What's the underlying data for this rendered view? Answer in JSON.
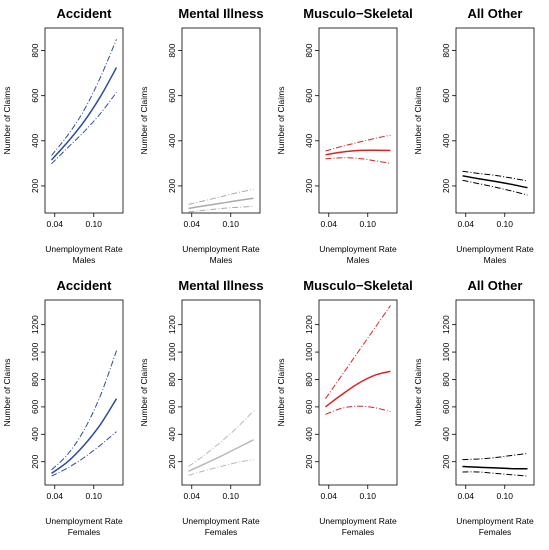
{
  "chart_data": [
    {
      "type": "line",
      "title": "Accident",
      "xlabel": "Unemployment Rate",
      "xlabel2": "Males",
      "ylabel": "Number of Claims",
      "xlim": [
        0.025,
        0.145
      ],
      "ylim": [
        80,
        900
      ],
      "xticks": [
        "0.04",
        "0.10"
      ],
      "yticks": [
        "200",
        "400",
        "600",
        "800"
      ],
      "color": "#2a4d9b",
      "x": [
        0.035,
        0.06,
        0.085,
        0.11,
        0.135
      ],
      "fit": [
        315,
        395,
        485,
        595,
        725
      ],
      "upper": [
        335,
        425,
        535,
        680,
        850
      ],
      "lower": [
        298,
        370,
        440,
        520,
        615
      ]
    },
    {
      "type": "line",
      "title": "Mental Illness",
      "xlabel": "Unemployment Rate",
      "xlabel2": "Males",
      "ylabel": "Number of Claims",
      "xlim": [
        0.025,
        0.145
      ],
      "ylim": [
        80,
        900
      ],
      "xticks": [
        "0.04",
        "0.10"
      ],
      "yticks": [
        "200",
        "400",
        "600",
        "800"
      ],
      "color": "#aaaaaa",
      "x": [
        0.035,
        0.06,
        0.085,
        0.11,
        0.135
      ],
      "fit": [
        100,
        112,
        123,
        135,
        145
      ],
      "upper": [
        118,
        135,
        152,
        170,
        185
      ],
      "lower": [
        85,
        92,
        100,
        105,
        110
      ]
    },
    {
      "type": "line",
      "title": "Musculo−Skeletal",
      "xlabel": "Unemployment Rate",
      "xlabel2": "Males",
      "ylabel": "Number of Claims",
      "xlim": [
        0.025,
        0.145
      ],
      "ylim": [
        80,
        900
      ],
      "xticks": [
        "0.04",
        "0.10"
      ],
      "yticks": [
        "200",
        "400",
        "600",
        "800"
      ],
      "color": "#dd2222",
      "x": [
        0.035,
        0.06,
        0.085,
        0.11,
        0.135
      ],
      "fit": [
        338,
        350,
        357,
        358,
        357
      ],
      "upper": [
        355,
        375,
        393,
        410,
        425
      ],
      "lower": [
        320,
        325,
        322,
        312,
        300
      ]
    },
    {
      "type": "line",
      "title": "All Other",
      "xlabel": "Unemployment Rate",
      "xlabel2": "Males",
      "ylabel": "Number of Claims",
      "xlim": [
        0.025,
        0.145
      ],
      "ylim": [
        80,
        900
      ],
      "xticks": [
        "0.04",
        "0.10"
      ],
      "yticks": [
        "200",
        "400",
        "600",
        "800"
      ],
      "color": "#000000",
      "x": [
        0.035,
        0.06,
        0.085,
        0.11,
        0.135
      ],
      "fit": [
        245,
        232,
        220,
        207,
        192
      ],
      "upper": [
        265,
        255,
        247,
        235,
        222
      ],
      "lower": [
        225,
        210,
        195,
        178,
        160
      ]
    },
    {
      "type": "line",
      "title": "Accident",
      "xlabel": "Unemployment Rate",
      "xlabel2": "Females",
      "ylabel": "Number of Claims",
      "xlim": [
        0.025,
        0.145
      ],
      "ylim": [
        30,
        1380
      ],
      "xticks": [
        "0.04",
        "0.10"
      ],
      "yticks": [
        "200",
        "400",
        "600",
        "800",
        "1000",
        "1200"
      ],
      "color": "#2a4d9b",
      "x": [
        0.035,
        0.06,
        0.085,
        0.11,
        0.135
      ],
      "fit": [
        115,
        200,
        320,
        470,
        660
      ],
      "upper": [
        140,
        255,
        430,
        680,
        1010
      ],
      "lower": [
        95,
        155,
        230,
        320,
        420
      ]
    },
    {
      "type": "line",
      "title": "Mental Illness",
      "xlabel": "Unemployment Rate",
      "xlabel2": "Females",
      "ylabel": "Number of Claims",
      "xlim": [
        0.025,
        0.145
      ],
      "ylim": [
        30,
        1380
      ],
      "xticks": [
        "0.04",
        "0.10"
      ],
      "yticks": [
        "200",
        "400",
        "600",
        "800",
        "1000",
        "1200"
      ],
      "color": "#b8b8b8",
      "x": [
        0.035,
        0.06,
        0.085,
        0.11,
        0.135
      ],
      "fit": [
        130,
        185,
        240,
        300,
        360
      ],
      "upper": [
        165,
        250,
        345,
        450,
        570
      ],
      "lower": [
        100,
        135,
        165,
        195,
        215
      ]
    },
    {
      "type": "line",
      "title": "Musculo−Skeletal",
      "xlabel": "Unemployment Rate",
      "xlabel2": "Females",
      "ylabel": "Number of Claims",
      "xlim": [
        0.025,
        0.145
      ],
      "ylim": [
        30,
        1380
      ],
      "xticks": [
        "0.04",
        "0.10"
      ],
      "yticks": [
        "200",
        "400",
        "600",
        "800",
        "1000",
        "1200"
      ],
      "color": "#dd2222",
      "x": [
        0.035,
        0.06,
        0.085,
        0.11,
        0.135
      ],
      "fit": [
        600,
        690,
        770,
        830,
        860
      ],
      "upper": [
        660,
        830,
        1000,
        1170,
        1340
      ],
      "lower": [
        545,
        590,
        605,
        595,
        565
      ]
    },
    {
      "type": "line",
      "title": "All Other",
      "xlabel": "Unemployment Rate",
      "xlabel2": "Females",
      "ylabel": "Number of Claims",
      "xlim": [
        0.025,
        0.145
      ],
      "ylim": [
        30,
        1380
      ],
      "xticks": [
        "0.04",
        "0.10"
      ],
      "yticks": [
        "200",
        "400",
        "600",
        "800",
        "1000",
        "1200"
      ],
      "color": "#000000",
      "x": [
        0.035,
        0.06,
        0.085,
        0.11,
        0.135
      ],
      "fit": [
        165,
        160,
        155,
        150,
        148
      ],
      "upper": [
        215,
        220,
        230,
        245,
        260
      ],
      "lower": [
        125,
        125,
        115,
        105,
        95
      ]
    }
  ]
}
